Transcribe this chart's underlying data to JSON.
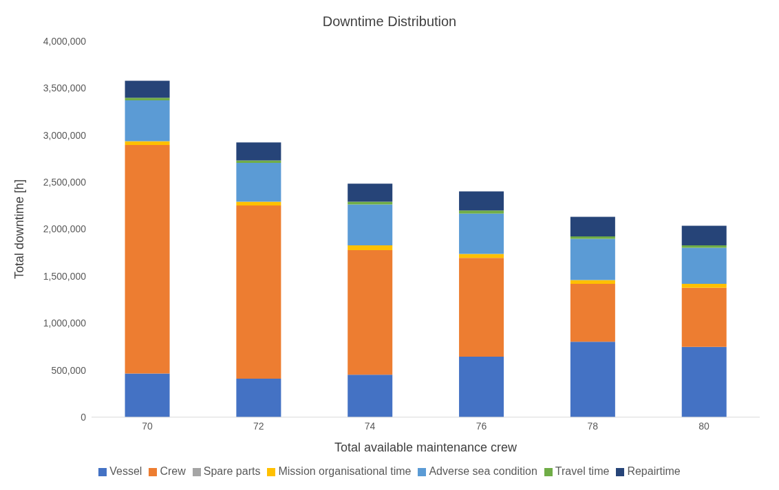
{
  "chart_data": {
    "type": "bar",
    "title": "Downtime Distribution",
    "xlabel": "Total available maintenance crew",
    "ylabel": "Total downtime [h]",
    "categories": [
      "70",
      "72",
      "74",
      "76",
      "78",
      "80"
    ],
    "stacked": true,
    "series": [
      {
        "name": "Vessel",
        "color": "#4472c4",
        "values": [
          464000,
          410000,
          451000,
          644000,
          802000,
          748000
        ]
      },
      {
        "name": "Crew",
        "color": "#ed7d31",
        "values": [
          2431000,
          1842000,
          1326000,
          1051000,
          616000,
          629000
        ]
      },
      {
        "name": "Spare parts",
        "color": "#a5a5a5",
        "values": [
          null,
          null,
          null,
          null,
          null,
          null
        ]
      },
      {
        "name": "Mission organisational time",
        "color": "#ffc000",
        "values": [
          41000,
          40000,
          51000,
          41000,
          41000,
          41000
        ]
      },
      {
        "name": "Adverse sea condition",
        "color": "#5b9bd5",
        "values": [
          436000,
          413000,
          436000,
          431000,
          439000,
          384000
        ]
      },
      {
        "name": "Travel time",
        "color": "#70ad47",
        "values": [
          26000,
          26000,
          28000,
          33000,
          25000,
          26000
        ]
      },
      {
        "name": "Repairtime",
        "color": "#264478",
        "values": [
          181000,
          192000,
          193000,
          202000,
          208000,
          208000
        ]
      }
    ],
    "ylim": [
      0,
      4000000
    ],
    "yticks": [
      {
        "value": 0,
        "label": "0"
      },
      {
        "value": 500000,
        "label": "500,000"
      },
      {
        "value": 1000000,
        "label": "1,000,000"
      },
      {
        "value": 1500000,
        "label": "1,500,000"
      },
      {
        "value": 2000000,
        "label": "2,000,000"
      },
      {
        "value": 2500000,
        "label": "2,500,000"
      },
      {
        "value": 3000000,
        "label": "3,000,000"
      },
      {
        "value": 3500000,
        "label": "3,500,000"
      },
      {
        "value": 4000000,
        "label": "4,000,000"
      }
    ],
    "grid": false,
    "legend": "bottom"
  }
}
